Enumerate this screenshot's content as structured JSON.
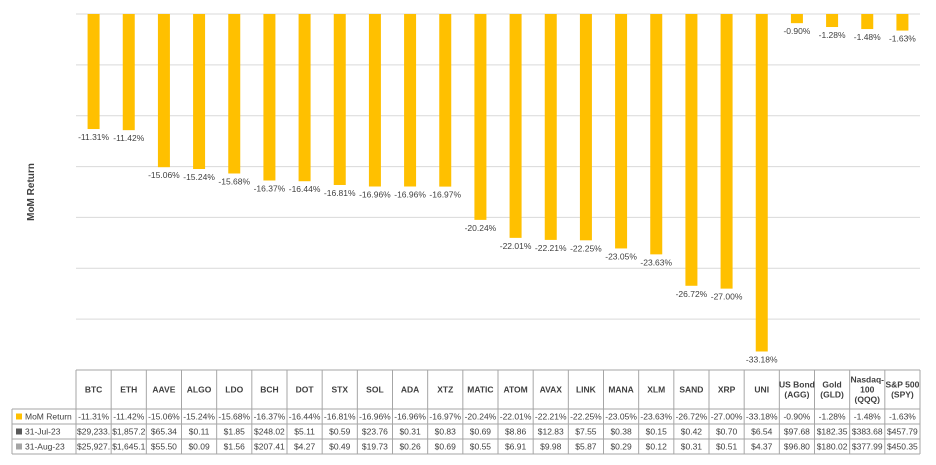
{
  "chart_data": {
    "type": "bar",
    "ylabel": "MoM Return",
    "ylim": [
      -35,
      0
    ],
    "grid": true,
    "colors": {
      "bar": "#FFC000",
      "gridline": "#D9D9D9",
      "border": "#A6A6A6",
      "row2_key": "#595959",
      "row3_key": "#A5A5A5"
    },
    "categories": [
      "BTC",
      "ETH",
      "AAVE",
      "ALGO",
      "LDO",
      "BCH",
      "DOT",
      "STX",
      "SOL",
      "ADA",
      "XTZ",
      "MATIC",
      "ATOM",
      "AVAX",
      "LINK",
      "MANA",
      "XLM",
      "SAND",
      "XRP",
      "UNI",
      "US Bond\n(AGG)",
      "Gold\n(GLD)",
      "Nasdaq-\n100\n(QQQ)",
      "S&P 500\n(SPY)"
    ],
    "values": [
      -11.31,
      -11.42,
      -15.06,
      -15.24,
      -15.68,
      -16.37,
      -16.44,
      -16.81,
      -16.96,
      -16.96,
      -16.97,
      -20.24,
      -22.01,
      -22.21,
      -22.25,
      -23.05,
      -23.63,
      -26.72,
      -27.0,
      -33.18,
      -0.9,
      -1.28,
      -1.48,
      -1.63
    ],
    "data_labels": [
      "-11.31%",
      "-11.42%",
      "-15.06%",
      "-15.24%",
      "-15.68%",
      "-16.37%",
      "-16.44%",
      "-16.81%",
      "-16.96%",
      "-16.96%",
      "-16.97%",
      "-20.24%",
      "-22.01%",
      "-22.21%",
      "-22.25%",
      "-23.05%",
      "-23.63%",
      "-26.72%",
      "-27.00%",
      "-33.18%",
      "-0.90%",
      "-1.28%",
      "-1.48%",
      "-1.63%"
    ],
    "table": {
      "rows": [
        {
          "label": "MoM Return",
          "key": "bar",
          "cells": [
            "-11.31%",
            "-11.42%",
            "-15.06%",
            "-15.24%",
            "-15.68%",
            "-16.37%",
            "-16.44%",
            "-16.81%",
            "-16.96%",
            "-16.96%",
            "-16.97%",
            "-20.24%",
            "-22.01%",
            "-22.21%",
            "-22.25%",
            "-23.05%",
            "-23.63%",
            "-26.72%",
            "-27.00%",
            "-33.18%",
            "-0.90%",
            "-1.28%",
            "-1.48%",
            "-1.63%"
          ]
        },
        {
          "label": "31-Jul-23",
          "key": "row2_key",
          "cells": [
            "$29,233.",
            "$1,857.2",
            "$65.34",
            "$0.11",
            "$1.85",
            "$248.02",
            "$5.11",
            "$0.59",
            "$23.76",
            "$0.31",
            "$0.83",
            "$0.69",
            "$8.86",
            "$12.83",
            "$7.55",
            "$0.38",
            "$0.15",
            "$0.42",
            "$0.70",
            "$6.54",
            "$97.68",
            "$182.35",
            "$383.68",
            "$457.79"
          ]
        },
        {
          "label": "31-Aug-23",
          "key": "row3_key",
          "cells": [
            "$25,927.",
            "$1,645.1",
            "$55.50",
            "$0.09",
            "$1.56",
            "$207.41",
            "$4.27",
            "$0.49",
            "$19.73",
            "$0.26",
            "$0.69",
            "$0.55",
            "$6.91",
            "$9.98",
            "$5.87",
            "$0.29",
            "$0.12",
            "$0.31",
            "$0.51",
            "$4.37",
            "$96.80",
            "$180.02",
            "$377.99",
            "$450.35"
          ]
        }
      ]
    }
  }
}
